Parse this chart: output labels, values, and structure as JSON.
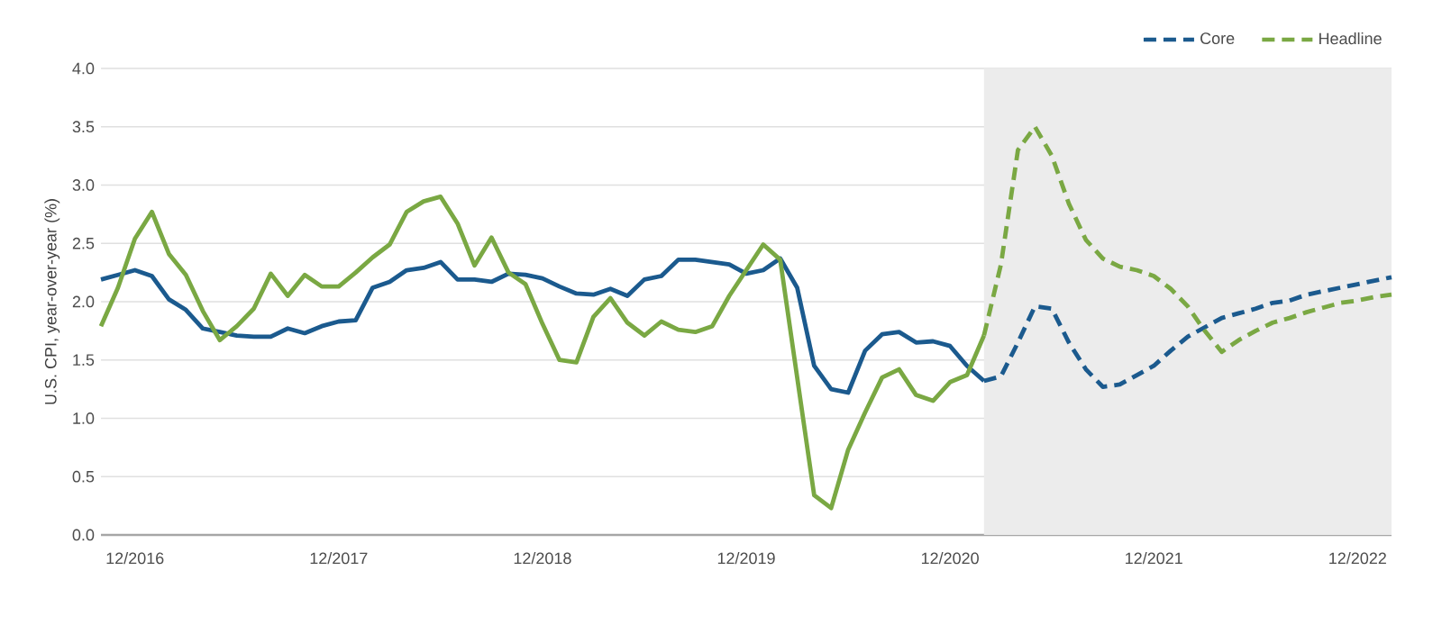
{
  "chart_data": {
    "type": "line",
    "ylabel": "U.S. CPI, year-over-year (%)",
    "grid": "y",
    "legend": "top right",
    "marker": "none",
    "xlim": [
      "2016-10",
      "2023-02"
    ],
    "ylim": [
      0,
      4
    ],
    "xticks": [
      {
        "value": "2016-12",
        "label": "12/2016"
      },
      {
        "value": "2017-12",
        "label": "12/2017"
      },
      {
        "value": "2018-12",
        "label": "12/2018"
      },
      {
        "value": "2019-12",
        "label": "12/2019"
      },
      {
        "value": "2020-12",
        "label": "12/2020"
      },
      {
        "value": "2021-12",
        "label": "12/2021"
      },
      {
        "value": "2022-12",
        "label": "12/2022"
      }
    ],
    "yticks": [
      {
        "value": 0,
        "label": "0.0"
      },
      {
        "value": 0.5,
        "label": "0.5"
      },
      {
        "value": 1,
        "label": "1.0"
      },
      {
        "value": 1.5,
        "label": "1.5"
      },
      {
        "value": 2,
        "label": "2.0"
      },
      {
        "value": 2.5,
        "label": "2.5"
      },
      {
        "value": 3,
        "label": "3.0"
      },
      {
        "value": 3.5,
        "label": "3.5"
      },
      {
        "value": 4,
        "label": "4.0"
      }
    ],
    "bands": [
      {
        "axis": "x",
        "from": "2021-02",
        "to": "2023-02",
        "color": "#ececec"
      }
    ],
    "series": [
      {
        "color": "#1b5a8e",
        "line_style": "solid",
        "x": [
          "2016-10",
          "2016-11",
          "2016-12",
          "2017-01",
          "2017-02",
          "2017-03",
          "2017-04",
          "2017-05",
          "2017-06",
          "2017-07",
          "2017-08",
          "2017-09",
          "2017-10",
          "2017-11",
          "2017-12",
          "2018-01",
          "2018-02",
          "2018-03",
          "2018-04",
          "2018-05",
          "2018-06",
          "2018-07",
          "2018-08",
          "2018-09",
          "2018-10",
          "2018-11",
          "2018-12",
          "2019-01",
          "2019-02",
          "2019-03",
          "2019-04",
          "2019-05",
          "2019-06",
          "2019-07",
          "2019-08",
          "2019-09",
          "2019-10",
          "2019-11",
          "2019-12",
          "2020-01",
          "2020-02",
          "2020-03",
          "2020-04",
          "2020-05",
          "2020-06",
          "2020-07",
          "2020-08",
          "2020-09",
          "2020-10",
          "2020-11",
          "2020-12",
          "2021-01",
          "2021-02"
        ],
        "values": [
          2.19,
          2.23,
          2.27,
          2.22,
          2.02,
          1.93,
          1.77,
          1.74,
          1.71,
          1.7,
          1.7,
          1.77,
          1.73,
          1.79,
          1.83,
          1.84,
          2.12,
          2.17,
          2.27,
          2.29,
          2.34,
          2.19,
          2.19,
          2.17,
          2.24,
          2.23,
          2.2,
          2.13,
          2.07,
          2.06,
          2.11,
          2.05,
          2.19,
          2.22,
          2.36,
          2.36,
          2.34,
          2.32,
          2.24,
          2.27,
          2.37,
          2.12,
          1.45,
          1.25,
          1.22,
          1.58,
          1.72,
          1.74,
          1.65,
          1.66,
          1.62,
          1.45,
          1.32
        ]
      },
      {
        "color": "#7aa843",
        "line_style": "solid",
        "x": [
          "2016-10",
          "2016-11",
          "2016-12",
          "2017-01",
          "2017-02",
          "2017-03",
          "2017-04",
          "2017-05",
          "2017-06",
          "2017-07",
          "2017-08",
          "2017-09",
          "2017-10",
          "2017-11",
          "2017-12",
          "2018-01",
          "2018-02",
          "2018-03",
          "2018-04",
          "2018-05",
          "2018-06",
          "2018-07",
          "2018-08",
          "2018-09",
          "2018-10",
          "2018-11",
          "2018-12",
          "2019-01",
          "2019-02",
          "2019-03",
          "2019-04",
          "2019-05",
          "2019-06",
          "2019-07",
          "2019-08",
          "2019-09",
          "2019-10",
          "2019-11",
          "2019-12",
          "2020-01",
          "2020-02",
          "2020-03",
          "2020-04",
          "2020-05",
          "2020-06",
          "2020-07",
          "2020-08",
          "2020-09",
          "2020-10",
          "2020-11",
          "2020-12",
          "2021-01",
          "2021-02"
        ],
        "values": [
          1.79,
          2.12,
          2.54,
          2.77,
          2.41,
          2.23,
          1.92,
          1.67,
          1.79,
          1.94,
          2.24,
          2.05,
          2.23,
          2.13,
          2.13,
          2.25,
          2.38,
          2.49,
          2.77,
          2.86,
          2.9,
          2.67,
          2.31,
          2.55,
          2.25,
          2.15,
          1.81,
          1.5,
          1.48,
          1.87,
          2.03,
          1.82,
          1.71,
          1.83,
          1.76,
          1.74,
          1.79,
          2.05,
          2.27,
          2.49,
          2.36,
          1.35,
          0.34,
          0.23,
          0.73,
          1.05,
          1.35,
          1.42,
          1.2,
          1.15,
          1.31,
          1.37,
          1.71
        ]
      },
      {
        "name": "Core",
        "color": "#1b5a8e",
        "line_style": "dashed",
        "x": [
          "2021-02",
          "2021-03",
          "2021-04",
          "2021-05",
          "2021-06",
          "2021-07",
          "2021-08",
          "2021-09",
          "2021-10",
          "2021-11",
          "2021-12",
          "2022-01",
          "2022-02",
          "2022-03",
          "2022-04",
          "2022-05",
          "2022-06",
          "2022-07",
          "2022-08",
          "2022-09",
          "2022-10",
          "2022-11",
          "2022-12",
          "2023-01",
          "2023-02"
        ],
        "values": [
          1.32,
          1.36,
          1.65,
          1.96,
          1.94,
          1.65,
          1.42,
          1.27,
          1.29,
          1.37,
          1.45,
          1.58,
          1.7,
          1.78,
          1.86,
          1.9,
          1.94,
          1.99,
          2.01,
          2.06,
          2.09,
          2.12,
          2.15,
          2.18,
          2.21
        ]
      },
      {
        "name": "Headline",
        "color": "#7aa843",
        "line_style": "dashed",
        "x": [
          "2021-02",
          "2021-03",
          "2021-04",
          "2021-05",
          "2021-06",
          "2021-07",
          "2021-08",
          "2021-09",
          "2021-10",
          "2021-11",
          "2021-12",
          "2022-01",
          "2022-02",
          "2022-03",
          "2022-04",
          "2022-05",
          "2022-06",
          "2022-07",
          "2022-08",
          "2022-09",
          "2022-10",
          "2022-11",
          "2022-12",
          "2023-01",
          "2023-02"
        ],
        "values": [
          1.71,
          2.32,
          3.3,
          3.5,
          3.25,
          2.84,
          2.53,
          2.37,
          2.3,
          2.27,
          2.22,
          2.11,
          1.96,
          1.75,
          1.57,
          1.67,
          1.75,
          1.82,
          1.86,
          1.91,
          1.95,
          1.99,
          2.01,
          2.04,
          2.06
        ]
      }
    ]
  }
}
